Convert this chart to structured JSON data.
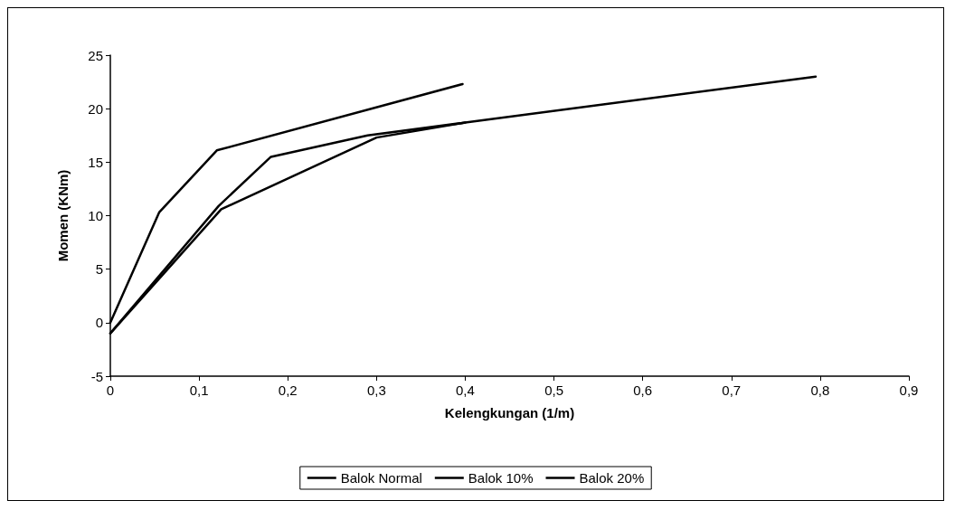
{
  "chart_data": {
    "type": "line",
    "xlabel": "Kelengkungan (1/m)",
    "ylabel": "Momen (KNm)",
    "series": [
      {
        "name": "Balok Normal",
        "color": "#000000",
        "x": [
          0,
          0.055,
          0.12,
          0.397
        ],
        "values": [
          0,
          10.3,
          16.1,
          22.3
        ]
      },
      {
        "name": "Balok 10%",
        "color": "#000000",
        "x": [
          0,
          0.122,
          0.181,
          0.29,
          0.4,
          0.795
        ],
        "values": [
          -1,
          10.9,
          15.5,
          17.5,
          18.7,
          23
        ]
      },
      {
        "name": "Balok 20%",
        "color": "#000000",
        "x": [
          0,
          0.125,
          0.3,
          0.4
        ],
        "values": [
          -1,
          10.6,
          17.3,
          18.7
        ]
      }
    ],
    "xlim": [
      0,
      0.9
    ],
    "ylim": [
      -5,
      25
    ],
    "xticks": [
      0,
      {
        "value": 0.1,
        "label": "0,1"
      },
      {
        "value": 0.2,
        "label": "0,2"
      },
      {
        "value": 0.3,
        "label": "0,3"
      },
      {
        "value": 0.4,
        "label": "0,4"
      },
      {
        "value": 0.5,
        "label": "0,5"
      },
      {
        "value": 0.6,
        "label": "0,6"
      },
      {
        "value": 0.7,
        "label": "0,7"
      },
      {
        "value": 0.8,
        "label": "0,8"
      },
      {
        "value": 0.9,
        "label": "0,9"
      }
    ],
    "yticks": [
      -5,
      0,
      5,
      10,
      15,
      20,
      25
    ],
    "grid": false,
    "legend": "bottom",
    "marker": "none",
    "line_style": "solid"
  }
}
